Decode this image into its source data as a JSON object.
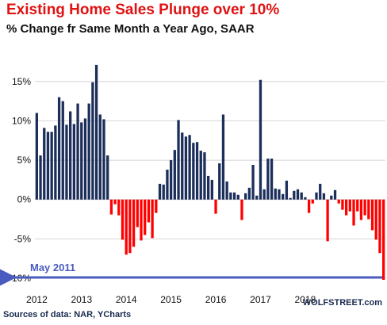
{
  "chart_data": {
    "type": "bar",
    "title": "Existing Home Sales Plunge over 10%",
    "subtitle": "% Change fr Same Month a Year Ago, SAAR",
    "xlabel": "",
    "ylabel": "",
    "ylim": [
      -10.6,
      18.5
    ],
    "yticks": [
      15,
      10,
      5,
      0,
      -5,
      -10
    ],
    "ytick_labels": [
      "15%",
      "10%",
      "5%",
      "0%",
      "-5%",
      "-10%"
    ],
    "xtick_labels": [
      "2012",
      "2013",
      "2014",
      "2015",
      "2016",
      "2017",
      "2018"
    ],
    "grid": "horizontal",
    "x_start": "2012-01",
    "x_end": "2018-07",
    "values": [
      11.0,
      5.6,
      9.1,
      8.6,
      8.6,
      9.4,
      13.0,
      12.5,
      9.5,
      11.2,
      9.6,
      12.2,
      9.8,
      10.3,
      12.2,
      14.9,
      17.1,
      10.8,
      10.2,
      5.6,
      -1.9,
      -0.6,
      -2.0,
      -5.1,
      -7.0,
      -6.8,
      -6.0,
      -3.5,
      -5.2,
      -4.5,
      -2.9,
      -4.9,
      -1.7,
      2.0,
      1.9,
      3.8,
      5.0,
      6.3,
      10.1,
      8.5,
      8.0,
      8.2,
      7.2,
      7.3,
      6.2,
      6.0,
      3.0,
      2.5,
      -1.8,
      4.6,
      10.8,
      2.3,
      0.9,
      0.9,
      0.6,
      -2.6,
      0.8,
      1.5,
      4.4,
      0.5,
      15.2,
      1.3,
      5.2,
      5.2,
      1.4,
      1.3,
      0.7,
      2.4,
      0.2,
      1.1,
      1.3,
      0.9,
      0.3,
      -1.7,
      -0.5,
      0.9,
      2.0,
      0.8,
      -5.3,
      0.5,
      1.2,
      -0.5,
      -1.3,
      -2.0,
      -1.5,
      -3.3,
      -1.5,
      -2.6,
      -2.0,
      -2.5,
      -3.9,
      -5.1,
      -6.8,
      -10.2
    ],
    "colors": {
      "positive": "#1c2e5a",
      "negative": "#ff0000",
      "annotation": "#4a5bc0"
    },
    "annotation": {
      "text": "May 2011",
      "y": -9.9
    }
  },
  "footer": {
    "source": "Sources of data: NAR, YCharts",
    "brand": "WOLFSTREET.com"
  }
}
